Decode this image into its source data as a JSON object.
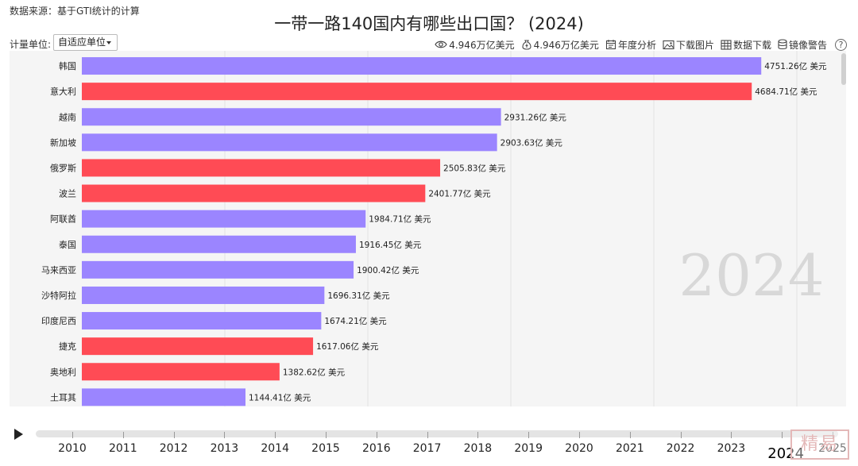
{
  "header": {
    "source": "数据来源：基于GTI统计的计算",
    "title": "一带一路140国内有哪些出口国？  (2024)",
    "unit_label": "计量单位:",
    "unit_value": "自适应单位"
  },
  "toolbar": {
    "total1": "4.946万亿美元",
    "total2": "4.946万亿美元",
    "annual": "年度分析",
    "download_image": "下载图片",
    "download_data": "数据下载",
    "mirror": "镜像警告",
    "help": "?"
  },
  "colors": {
    "purple": "#9b85ff",
    "red": "#ff4b55",
    "plot_bg": "#f5f5f5"
  },
  "chart_data": {
    "type": "bar",
    "orientation": "horizontal",
    "title": "一带一路140国内有哪些出口国？  (2024)",
    "year_label": "2024",
    "unit": "亿 美元",
    "xlim": [
      0,
      5000
    ],
    "categories": [
      "韩国",
      "意大利",
      "越南",
      "新加坡",
      "俄罗斯",
      "波兰",
      "阿联酋",
      "泰国",
      "马来西亚",
      "沙特阿拉",
      "印度尼西",
      "捷克",
      "奥地利",
      "土耳其"
    ],
    "values": [
      4751.26,
      4684.71,
      2931.26,
      2903.63,
      2505.83,
      2401.77,
      1984.71,
      1916.45,
      1900.42,
      1696.31,
      1674.21,
      1617.06,
      1382.62,
      1144.41
    ],
    "value_labels": [
      "4751.26亿 美元",
      "4684.71亿 美元",
      "2931.26亿 美元",
      "2903.63亿 美元",
      "2505.83亿 美元",
      "2401.77亿 美元",
      "1984.71亿 美元",
      "1916.45亿 美元",
      "1900.42亿 美元",
      "1696.31亿 美元",
      "1674.21亿 美元",
      "1617.06亿 美元",
      "1382.62亿 美元",
      "1144.41亿 美元"
    ],
    "bar_colors": [
      "purple",
      "red",
      "purple",
      "purple",
      "red",
      "red",
      "purple",
      "purple",
      "purple",
      "purple",
      "purple",
      "red",
      "red",
      "purple"
    ]
  },
  "timeline": {
    "years": [
      "2010",
      "2011",
      "2012",
      "2013",
      "2014",
      "2015",
      "2016",
      "2017",
      "2018",
      "2019",
      "2020",
      "2021",
      "2022",
      "2023",
      "2024",
      "2025"
    ],
    "current": "2024"
  }
}
